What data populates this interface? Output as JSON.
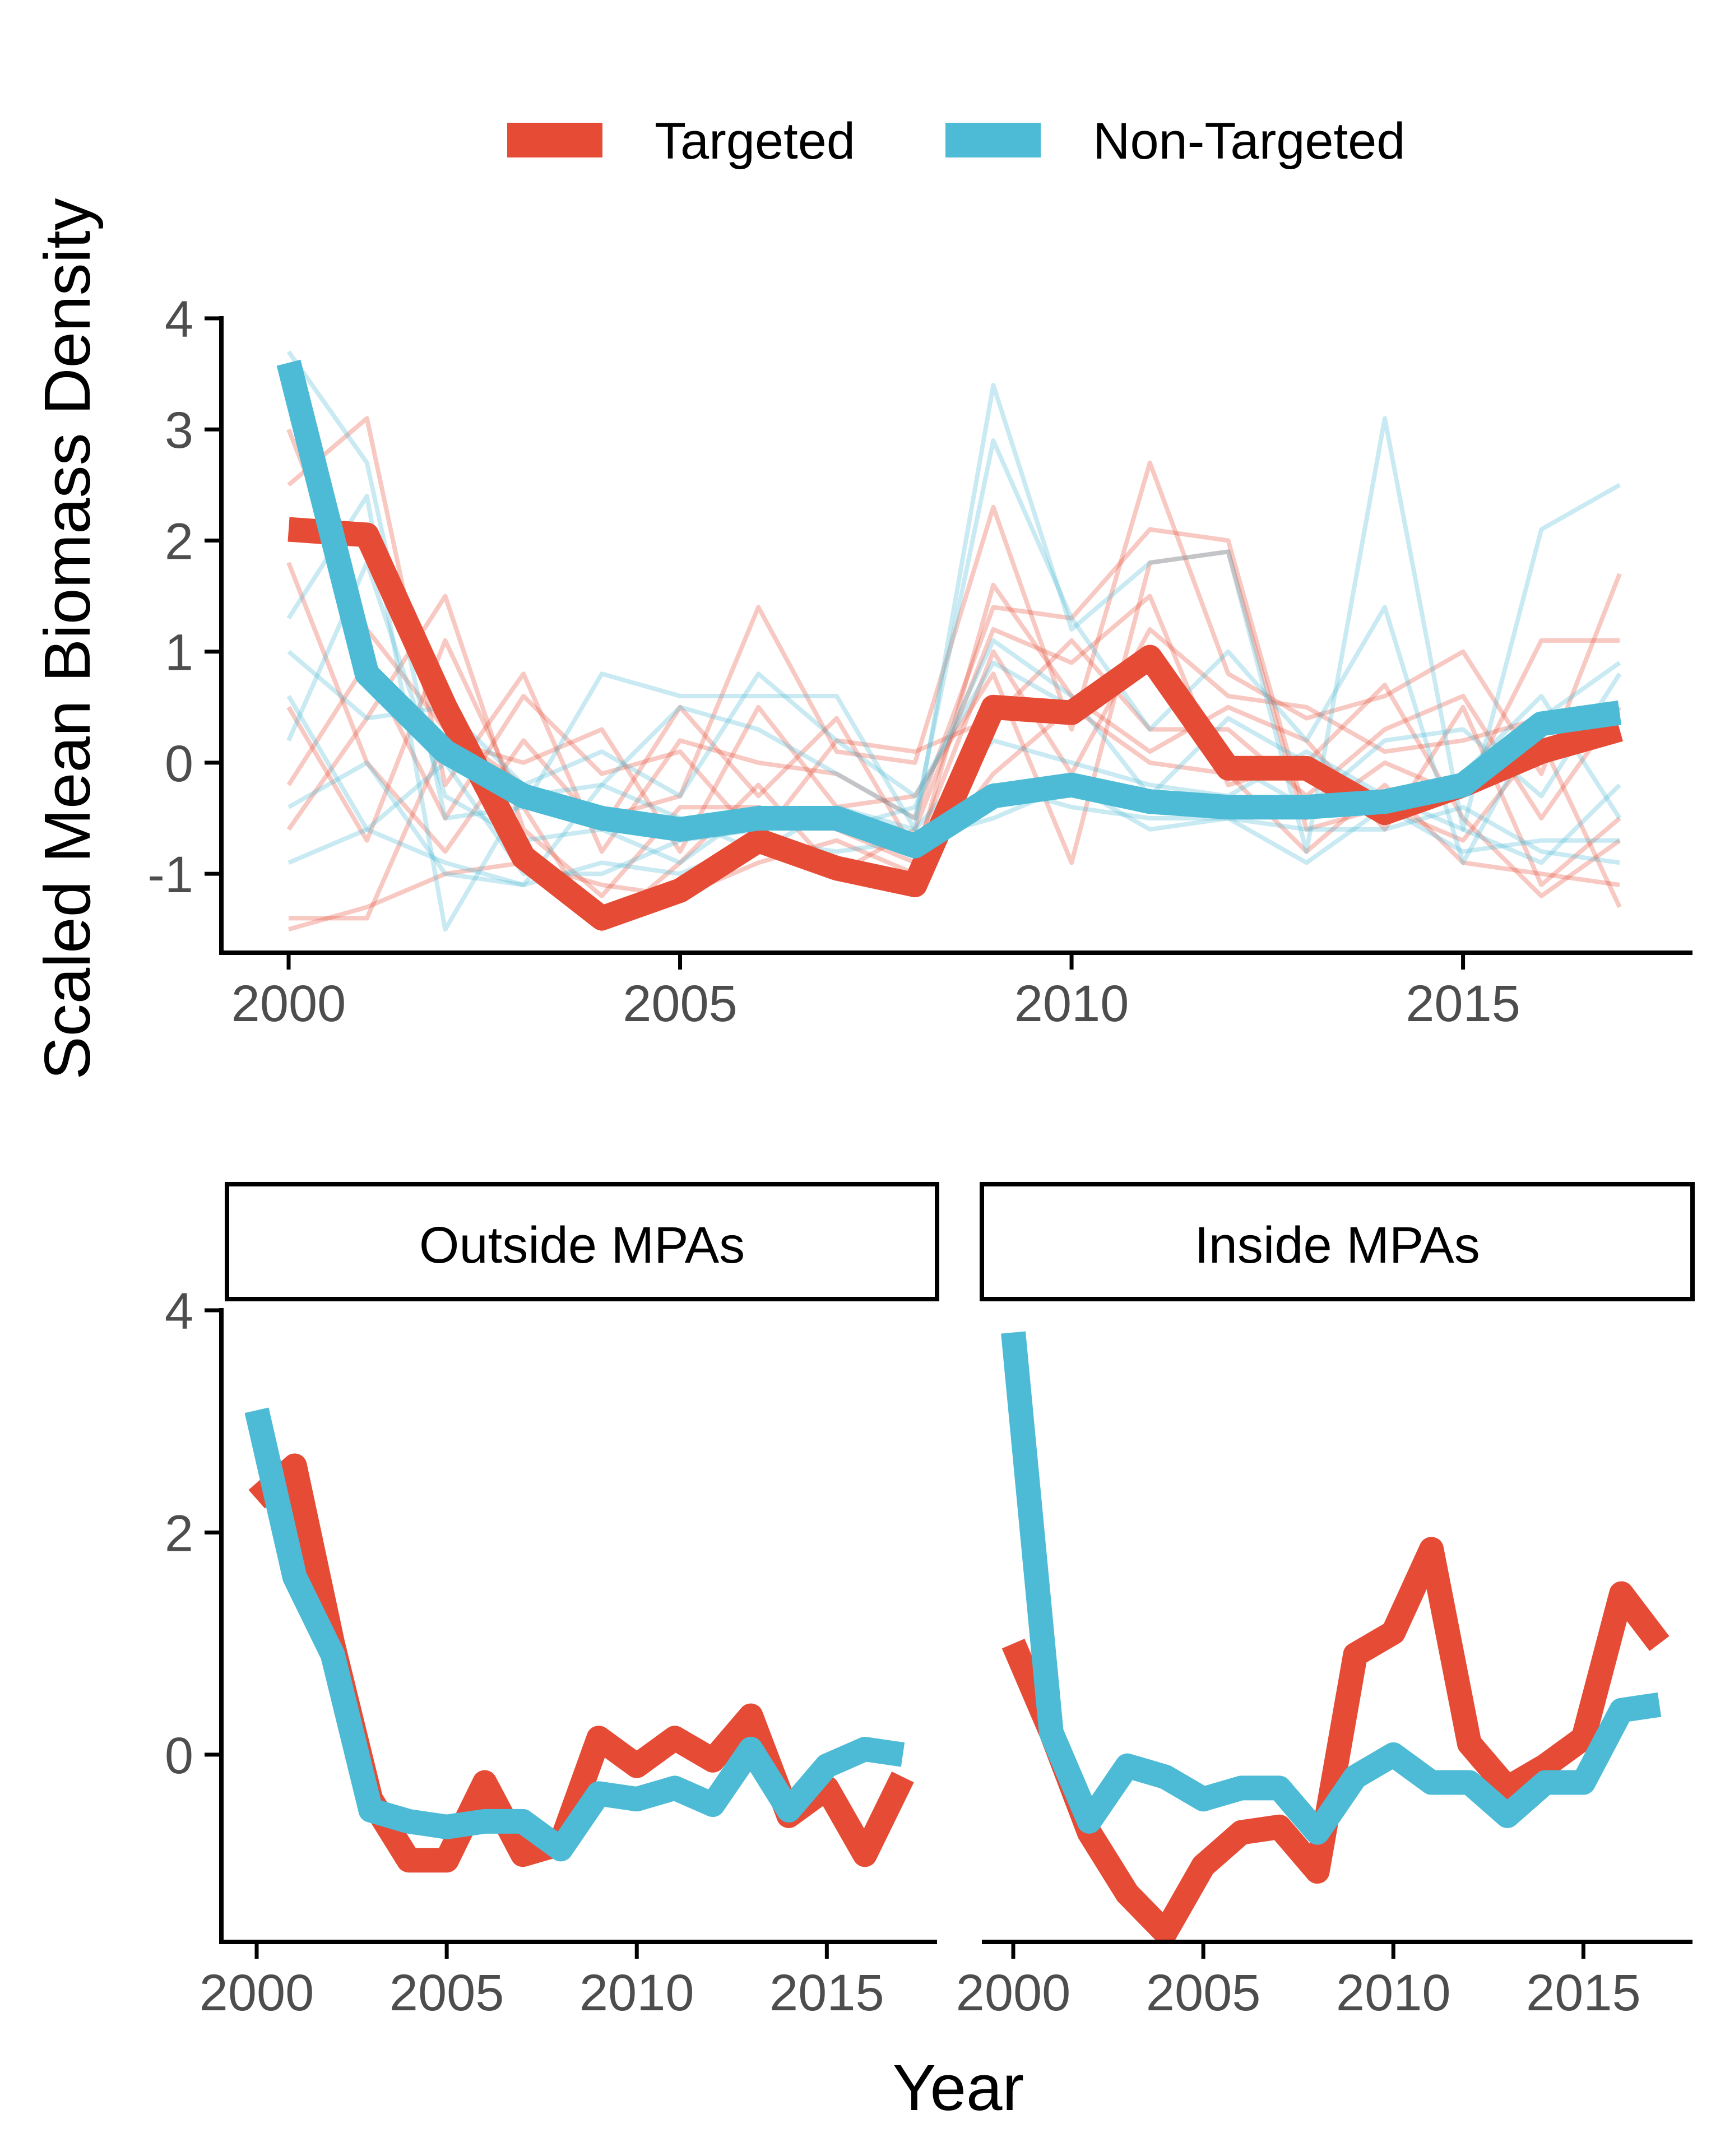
{
  "colors": {
    "targeted": "#E64B35",
    "non_targeted": "#4DBBD5",
    "axis": "#000000",
    "tick_text": "#4d4d4d"
  },
  "legend": {
    "placement": "top",
    "items": [
      {
        "key": "targeted",
        "label": "Targeted"
      },
      {
        "key": "non_targeted",
        "label": "Non-Targeted"
      }
    ]
  },
  "ylabel": "Scaled Mean Biomass Density",
  "xlabel": "Year",
  "chart_data": [
    {
      "type": "line",
      "panel": "top",
      "title": "",
      "xlim": [
        1999.2,
        2018.1
      ],
      "ylim": [
        -1.83,
        4.1
      ],
      "x_ticks": [
        2000,
        2005,
        2010,
        2015
      ],
      "y_ticks": [
        -1,
        0,
        1,
        2,
        3,
        4
      ],
      "x": [
        2000,
        2001,
        2002,
        2003,
        2004,
        2005,
        2006,
        2007,
        2008,
        2009,
        2010,
        2011,
        2012,
        2013,
        2014,
        2015,
        2016,
        2017
      ],
      "series": [
        {
          "name": "Targeted",
          "color_key": "targeted",
          "values": [
            2.1,
            2.05,
            0.5,
            -0.85,
            -1.4,
            -1.15,
            -0.7,
            -0.95,
            -1.1,
            0.5,
            0.45,
            0.95,
            -0.05,
            -0.05,
            -0.45,
            -0.2,
            0.1,
            0.3
          ]
        },
        {
          "name": "Non-Targeted",
          "color_key": "non_targeted",
          "values": [
            3.6,
            0.8,
            0.1,
            -0.3,
            -0.5,
            -0.6,
            -0.5,
            -0.5,
            -0.75,
            -0.3,
            -0.2,
            -0.35,
            -0.4,
            -0.4,
            -0.35,
            -0.2,
            0.35,
            0.45
          ]
        }
      ],
      "faint_series": {
        "targeted": [
          [
            3.0,
            1.2,
            0.3,
            -0.2,
            -0.5,
            -0.3,
            1.4,
            0.1,
            0.0,
            2.3,
            0.3,
            2.7,
            0.8,
            0.4,
            0.6,
            1.0,
            -0.1,
            1.7
          ],
          [
            2.5,
            3.1,
            -0.2,
            0.8,
            -0.8,
            0.2,
            0.0,
            -0.1,
            -0.5,
            1.4,
            1.3,
            2.1,
            2.0,
            -0.5,
            0.0,
            -0.3,
            1.1,
            1.1
          ],
          [
            -0.6,
            0.4,
            1.5,
            -0.6,
            -1.2,
            -0.4,
            -0.4,
            -0.6,
            -0.9,
            1.6,
            0.6,
            0.1,
            0.5,
            0.2,
            -0.6,
            0.5,
            -1.1,
            -0.5
          ],
          [
            -1.4,
            -1.4,
            0.2,
            0.0,
            0.3,
            -0.8,
            0.5,
            -0.4,
            -0.3,
            0.8,
            -0.9,
            1.8,
            1.9,
            -0.6,
            -0.4,
            -0.7,
            0.2,
            -1.3
          ],
          [
            0.5,
            -0.7,
            1.1,
            -0.4,
            -1.5,
            -0.9,
            -0.2,
            -1.0,
            -0.6,
            1.2,
            0.9,
            1.5,
            -0.2,
            0.0,
            0.7,
            -0.5,
            -1.2,
            -0.7
          ],
          [
            -0.2,
            0.9,
            -0.5,
            0.6,
            -0.1,
            0.1,
            -0.7,
            0.2,
            0.1,
            0.4,
            1.1,
            0.3,
            0.3,
            -0.3,
            0.3,
            0.6,
            -0.5,
            0.5
          ],
          [
            -1.5,
            -1.3,
            -1.0,
            -0.9,
            -1.1,
            -1.2,
            -0.9,
            -0.7,
            -1.0,
            -0.1,
            0.5,
            0.0,
            -0.1,
            -0.8,
            -0.2,
            -0.9,
            -1.0,
            -1.1
          ],
          [
            1.8,
            0.0,
            -0.8,
            0.2,
            -0.6,
            0.5,
            -0.3,
            0.4,
            -0.8,
            1.0,
            -0.1,
            1.2,
            0.6,
            0.5,
            0.1,
            0.2,
            0.4,
            0.2
          ]
        ],
        "non_targeted": [
          [
            3.7,
            2.7,
            -0.5,
            -0.4,
            0.8,
            0.6,
            0.6,
            0.6,
            -0.6,
            3.4,
            1.2,
            1.8,
            1.9,
            -0.8,
            3.1,
            -0.6,
            2.1,
            2.5
          ],
          [
            1.3,
            2.4,
            -1.5,
            -0.3,
            -0.2,
            0.5,
            0.3,
            -0.1,
            -0.5,
            2.9,
            1.3,
            0.3,
            1.0,
            0.2,
            1.4,
            -0.9,
            0.4,
            0.9
          ],
          [
            0.6,
            -0.6,
            0.0,
            -1.0,
            -1.0,
            -0.7,
            -0.6,
            -0.5,
            -0.8,
            -0.2,
            -0.4,
            -0.5,
            -0.5,
            -0.9,
            -0.4,
            -0.8,
            -0.7,
            -0.7
          ],
          [
            -0.9,
            -0.6,
            -0.9,
            -1.1,
            -0.2,
            -0.5,
            -0.8,
            -0.4,
            -0.6,
            0.2,
            0.0,
            -0.2,
            -0.3,
            0.1,
            -0.3,
            -0.6,
            -0.9,
            -0.2
          ],
          [
            1.0,
            0.4,
            0.5,
            -0.2,
            0.1,
            -0.3,
            0.8,
            0.2,
            -0.3,
            0.9,
            0.5,
            1.0,
            0.0,
            -0.4,
            0.2,
            0.3,
            -0.3,
            0.8
          ],
          [
            0.2,
            1.8,
            -0.3,
            -0.7,
            -0.6,
            -0.9,
            -0.4,
            -0.6,
            -0.4,
            1.1,
            0.6,
            -0.3,
            0.4,
            0.0,
            -0.5,
            -0.1,
            0.6,
            -0.5
          ],
          [
            -0.4,
            0.0,
            -1.0,
            -1.1,
            -0.9,
            -1.0,
            -0.7,
            -0.8,
            -0.7,
            -0.5,
            -0.2,
            -0.6,
            -0.5,
            -0.6,
            -0.6,
            -0.4,
            -0.8,
            -0.9
          ]
        ]
      }
    },
    {
      "type": "line",
      "panel": "bottom-left",
      "title": "Outside MPAs",
      "xlim": [
        1999.2,
        2018.1
      ],
      "ylim": [
        -1.83,
        4.1
      ],
      "x_ticks": [
        2000,
        2005,
        2010,
        2015
      ],
      "y_ticks": [
        0,
        2,
        4
      ],
      "x": [
        2000,
        2001,
        2002,
        2003,
        2004,
        2005,
        2006,
        2007,
        2008,
        2009,
        2010,
        2011,
        2012,
        2013,
        2014,
        2015,
        2016,
        2017
      ],
      "series": [
        {
          "name": "Targeted",
          "color_key": "targeted",
          "values": [
            2.3,
            2.6,
            1.0,
            -0.4,
            -0.95,
            -0.95,
            -0.25,
            -0.9,
            -0.8,
            0.15,
            -0.1,
            0.15,
            -0.05,
            0.35,
            -0.55,
            -0.3,
            -0.9,
            -0.2
          ]
        },
        {
          "name": "Non-Targeted",
          "color_key": "non_targeted",
          "values": [
            3.1,
            1.6,
            0.9,
            -0.5,
            -0.6,
            -0.65,
            -0.6,
            -0.6,
            -0.85,
            -0.35,
            -0.4,
            -0.3,
            -0.45,
            0.05,
            -0.5,
            -0.1,
            0.05,
            0.0
          ]
        }
      ]
    },
    {
      "type": "line",
      "panel": "bottom-right",
      "title": "Inside MPAs",
      "xlim": [
        1999.2,
        2018.1
      ],
      "ylim": [
        -1.83,
        4.1
      ],
      "x_ticks": [
        2000,
        2005,
        2010,
        2015
      ],
      "y_ticks": [
        0,
        2,
        4
      ],
      "x": [
        2000,
        2001,
        2002,
        2003,
        2004,
        2005,
        2006,
        2007,
        2008,
        2009,
        2010,
        2011,
        2012,
        2013,
        2014,
        2015,
        2016,
        2017
      ],
      "series": [
        {
          "name": "Targeted",
          "color_key": "targeted",
          "values": [
            1.0,
            0.2,
            -0.7,
            -1.25,
            -1.6,
            -1.0,
            -0.7,
            -0.65,
            -1.05,
            0.9,
            1.1,
            1.85,
            0.1,
            -0.3,
            -0.1,
            0.15,
            1.45,
            1.0
          ]
        },
        {
          "name": "Non-Targeted",
          "color_key": "non_targeted",
          "values": [
            3.8,
            0.2,
            -0.6,
            -0.1,
            -0.2,
            -0.4,
            -0.3,
            -0.3,
            -0.7,
            -0.2,
            0.0,
            -0.25,
            -0.25,
            -0.55,
            -0.25,
            -0.25,
            0.4,
            0.45
          ]
        }
      ]
    }
  ]
}
